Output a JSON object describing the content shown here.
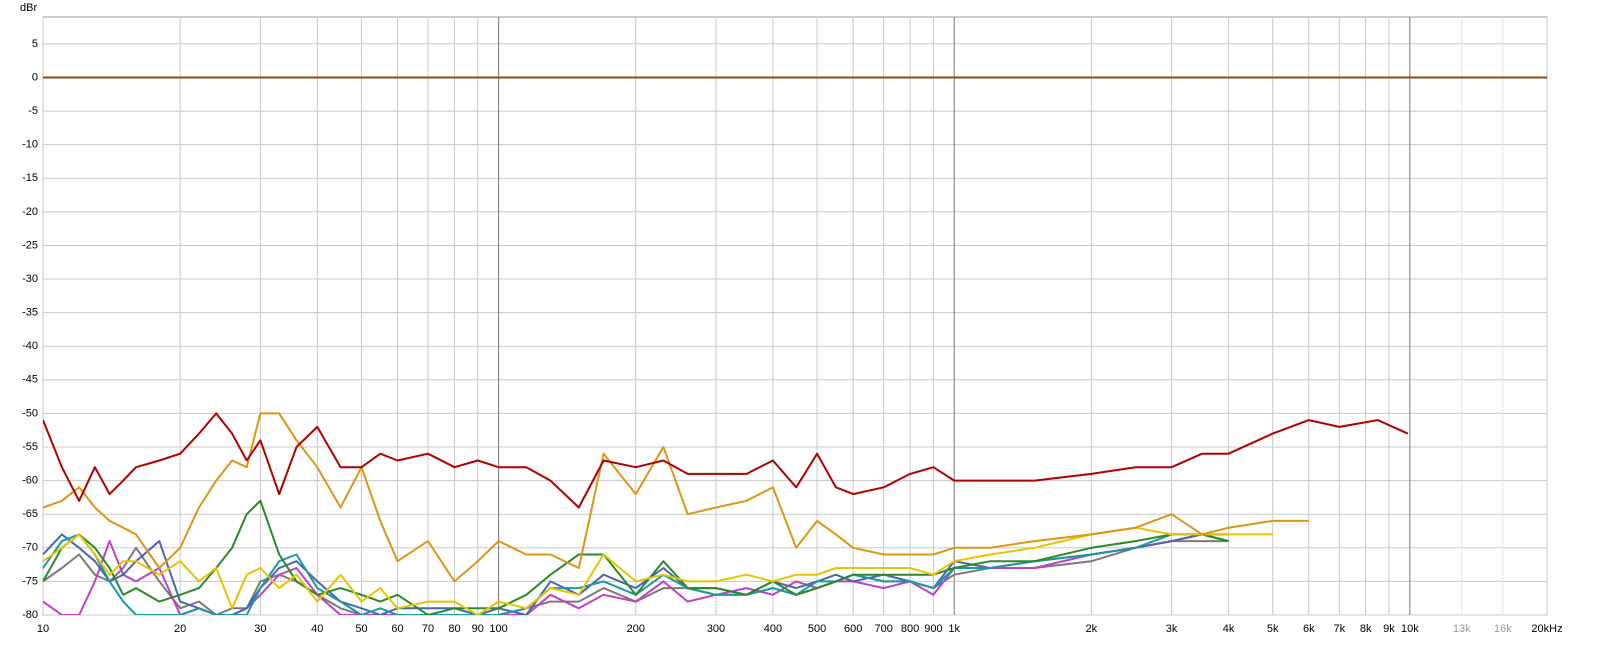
{
  "chart_data": {
    "type": "line",
    "y_label": "dBr",
    "log_x": true,
    "grid": true,
    "xlim": [
      10,
      20000
    ],
    "ylim": [
      -80,
      9
    ],
    "xticks": [
      10,
      20,
      30,
      40,
      50,
      60,
      70,
      80,
      90,
      100,
      200,
      300,
      400,
      500,
      600,
      700,
      800,
      900,
      {
        "value": 1000,
        "label": "1k"
      },
      {
        "value": 2000,
        "label": "2k"
      },
      {
        "value": 3000,
        "label": "3k"
      },
      {
        "value": 4000,
        "label": "4k"
      },
      {
        "value": 5000,
        "label": "5k"
      },
      {
        "value": 6000,
        "label": "6k"
      },
      {
        "value": 7000,
        "label": "7k"
      },
      {
        "value": 8000,
        "label": "8k"
      },
      {
        "value": 9000,
        "label": "9k"
      },
      {
        "value": 10000,
        "label": "10k"
      },
      {
        "value": 13000,
        "label": "13k"
      },
      {
        "value": 16000,
        "label": "16k"
      },
      {
        "value": 20000,
        "label": "20kHz"
      }
    ],
    "yticks": [
      5,
      0,
      -5,
      -10,
      -15,
      -20,
      -25,
      -30,
      -35,
      -40,
      -45,
      -50,
      -55,
      -60,
      -65,
      -70,
      -75,
      -80
    ],
    "x": [
      10,
      11,
      12,
      13,
      14,
      15,
      16,
      18,
      20,
      22,
      24,
      26,
      28,
      30,
      33,
      36,
      40,
      45,
      50,
      55,
      60,
      70,
      80,
      90,
      100,
      115,
      130,
      150,
      170,
      200,
      230,
      260,
      300,
      350,
      400,
      450,
      500,
      550,
      600,
      700,
      800,
      900,
      1000,
      1200,
      1500,
      2000,
      2500,
      3000,
      3500,
      4000,
      5000,
      6000,
      7000,
      8500,
      9900,
      20000
    ],
    "series": [
      {
        "color": "#8b4a0a",
        "values": [
          0,
          0,
          0,
          0,
          0,
          0,
          0,
          0,
          0,
          0,
          0,
          0,
          0,
          0,
          0,
          0,
          0,
          0,
          0,
          0,
          0,
          0,
          0,
          0,
          0,
          0,
          0,
          0,
          0,
          0,
          0,
          0,
          0,
          0,
          0,
          0,
          0,
          0,
          0,
          0,
          0,
          0,
          0,
          0,
          0,
          0,
          0,
          0,
          0,
          0,
          0,
          0,
          0,
          0,
          0,
          0
        ]
      },
      {
        "color": "#7a7a7a",
        "values": [
          -75,
          -73,
          -71,
          -74,
          -75,
          -73,
          -70,
          -75,
          -79,
          -78,
          -80,
          -79,
          -79,
          -75,
          -74,
          -75,
          -77,
          -79,
          -80,
          -80,
          -80,
          -80,
          -80,
          -80,
          -80,
          -79,
          -78,
          -78,
          -76,
          -78,
          -76,
          -76,
          -77,
          -77,
          -76,
          -77,
          -76,
          -75,
          -74,
          -75,
          -75,
          -76,
          -74,
          -73,
          -73,
          -72,
          -70,
          -69,
          -69,
          -69,
          null,
          null,
          null,
          null,
          null,
          null
        ]
      },
      {
        "color": "#c040c8",
        "values": [
          -78,
          -80,
          -80,
          -75,
          -69,
          -74,
          -75,
          -73,
          -80,
          -79,
          -80,
          -80,
          -79,
          -77,
          -74,
          -73,
          -77,
          -80,
          -80,
          -80,
          -80,
          -80,
          -80,
          -80,
          -80,
          -80,
          -77,
          -79,
          -77,
          -78,
          -75,
          -78,
          -77,
          -76,
          -77,
          -75,
          -76,
          -75,
          -75,
          -76,
          -75,
          -77,
          -73,
          -73,
          -73,
          -71,
          -70,
          -69,
          -68,
          -68,
          null,
          null,
          null,
          null,
          null,
          null
        ]
      },
      {
        "color": "#4a66b0",
        "values": [
          -71,
          -68,
          -70,
          -72,
          -75,
          -74,
          -72,
          -69,
          -78,
          -79,
          -80,
          -80,
          -79,
          -76,
          -73,
          -72,
          -75,
          -78,
          -79,
          -80,
          -79,
          -79,
          -79,
          -80,
          -79,
          -80,
          -75,
          -77,
          -74,
          -76,
          -73,
          -76,
          -76,
          -77,
          -75,
          -76,
          -75,
          -74,
          -75,
          -74,
          -75,
          -76,
          -72,
          -73,
          -72,
          -71,
          -70,
          -69,
          -68,
          -68,
          null,
          null,
          null,
          null,
          null,
          null
        ]
      },
      {
        "color": "#1a9aa0",
        "values": [
          -73,
          -69,
          -68,
          -71,
          -75,
          -78,
          -80,
          -80,
          -80,
          -79,
          -80,
          -80,
          -80,
          -76,
          -72,
          -71,
          -76,
          -78,
          -80,
          -79,
          -80,
          -80,
          -80,
          -80,
          -80,
          -79,
          -76,
          -76,
          -75,
          -77,
          -74,
          -76,
          -77,
          -77,
          -76,
          -77,
          -75,
          -75,
          -74,
          -75,
          -75,
          -76,
          -73,
          -73,
          -72,
          -71,
          -70,
          -68,
          -68,
          -69,
          null,
          null,
          null,
          null,
          null,
          null
        ]
      },
      {
        "color": "#2a8a2a",
        "values": [
          -75,
          -70,
          -68,
          -70,
          -73,
          -77,
          -76,
          -78,
          -77,
          -76,
          -73,
          -70,
          -65,
          -63,
          -71,
          -75,
          -77,
          -76,
          -77,
          -78,
          -77,
          -80,
          -79,
          -79,
          -79,
          -77,
          -74,
          -71,
          -71,
          -77,
          -72,
          -76,
          -76,
          -77,
          -75,
          -77,
          -76,
          -75,
          -74,
          -74,
          -74,
          -74,
          -73,
          -72,
          -72,
          -70,
          -69,
          -68,
          -68,
          -69,
          null,
          null,
          null,
          null,
          null,
          null
        ]
      },
      {
        "color": "#e6c400",
        "values": [
          -72,
          -70,
          -68,
          -71,
          -74,
          -72,
          -72,
          -74,
          -72,
          -75,
          -73,
          -79,
          -74,
          -73,
          -76,
          -74,
          -78,
          -74,
          -78,
          -76,
          -79,
          -78,
          -78,
          -80,
          -78,
          -79,
          -76,
          -77,
          -71,
          -75,
          -74,
          -75,
          -75,
          -74,
          -75,
          -74,
          -74,
          -73,
          -73,
          -73,
          -73,
          -74,
          -72,
          -71,
          -70,
          -68,
          -67,
          -68,
          -68,
          -68,
          -68,
          null,
          null,
          null,
          null,
          null
        ]
      },
      {
        "color": "#dc9614",
        "values": [
          -64,
          -63,
          -61,
          -64,
          -66,
          -67,
          -68,
          -73,
          -70,
          -64,
          -60,
          -57,
          -58,
          -50,
          -50,
          -54,
          -58,
          -64,
          -58,
          -66,
          -72,
          -69,
          -75,
          -72,
          -69,
          -71,
          -71,
          -73,
          -56,
          -62,
          -55,
          -65,
          -64,
          -63,
          -61,
          -70,
          -66,
          -68,
          -70,
          -71,
          -71,
          -71,
          -70,
          -70,
          -69,
          -68,
          -67,
          -65,
          -68,
          -67,
          -66,
          -66,
          null,
          null,
          null,
          null
        ]
      },
      {
        "color": "#b00000",
        "values": [
          -51,
          -58,
          -63,
          -58,
          -62,
          -60,
          -58,
          -57,
          -56,
          -53,
          -50,
          -53,
          -57,
          -54,
          -62,
          -55,
          -52,
          -58,
          -58,
          -56,
          -57,
          -56,
          -58,
          -57,
          -58,
          -58,
          -60,
          -64,
          -57,
          -58,
          -57,
          -59,
          -59,
          -59,
          -57,
          -61,
          -56,
          -61,
          -62,
          -61,
          -59,
          -58,
          -60,
          -60,
          -60,
          -59,
          -58,
          -58,
          -56,
          -56,
          -53,
          -51,
          -52,
          -51,
          -53,
          null
        ]
      }
    ]
  }
}
